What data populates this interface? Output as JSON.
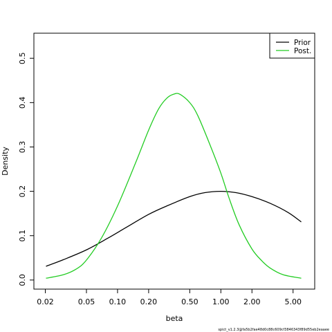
{
  "chart_data": {
    "type": "line",
    "xlabel": "beta",
    "ylabel": "Density",
    "x_scale": "log",
    "xlim": [
      0.0155,
      8.1
    ],
    "ylim": [
      -0.0205,
      0.5565
    ],
    "x_ticks": [
      {
        "value": 0.02,
        "label": "0.02"
      },
      {
        "value": 0.05,
        "label": "0.05"
      },
      {
        "value": 0.1,
        "label": "0.10"
      },
      {
        "value": 0.2,
        "label": "0.20"
      },
      {
        "value": 0.5,
        "label": "0.50"
      },
      {
        "value": 1.0,
        "label": "1.00"
      },
      {
        "value": 2.0,
        "label": "2.00"
      },
      {
        "value": 5.0,
        "label": "5.00"
      }
    ],
    "y_ticks": [
      {
        "value": 0.0,
        "label": "0.0"
      },
      {
        "value": 0.1,
        "label": "0.1"
      },
      {
        "value": 0.2,
        "label": "0.2"
      },
      {
        "value": 0.3,
        "label": "0.3"
      },
      {
        "value": 0.4,
        "label": "0.4"
      },
      {
        "value": 0.5,
        "label": "0.5"
      }
    ],
    "grid": false,
    "legend_position": "top-right",
    "series": [
      {
        "name": "Prior",
        "color": "#000000",
        "x": [
          0.0203,
          0.03,
          0.05,
          0.08,
          0.12,
          0.2,
          0.3,
          0.5,
          0.7,
          1.0,
          1.4,
          2.0,
          3.0,
          4.5,
          6.0
        ],
        "y": [
          0.031,
          0.046,
          0.068,
          0.094,
          0.118,
          0.148,
          0.167,
          0.188,
          0.197,
          0.2,
          0.197,
          0.188,
          0.173,
          0.152,
          0.131
        ]
      },
      {
        "name": "Post.",
        "color": "#22cc22",
        "x": [
          0.0203,
          0.03,
          0.04,
          0.05,
          0.07,
          0.1,
          0.15,
          0.2,
          0.25,
          0.3,
          0.35,
          0.4,
          0.5,
          0.6,
          0.8,
          1.0,
          1.2,
          1.5,
          2.0,
          2.5,
          3.0,
          4.0,
          6.0
        ],
        "y": [
          0.004,
          0.012,
          0.025,
          0.045,
          0.095,
          0.167,
          0.265,
          0.338,
          0.386,
          0.41,
          0.419,
          0.419,
          0.4,
          0.37,
          0.3,
          0.241,
          0.185,
          0.125,
          0.07,
          0.043,
          0.027,
          0.012,
          0.004
        ]
      }
    ]
  },
  "footer_text": "spict_v1.2.3@fa5b2fae48d0c88c609cf3846343f89d55eb2eaaee"
}
